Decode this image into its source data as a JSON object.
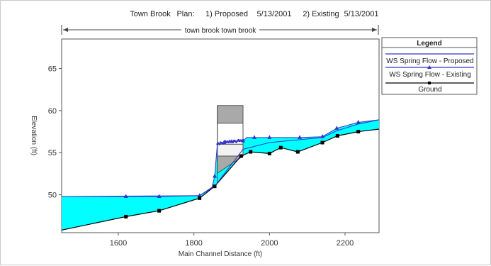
{
  "header": {
    "river": "Town Brook",
    "plan_label": "Plan:",
    "plan1": "1) Proposed",
    "date1": "5/13/2001",
    "plan2": "2) Existing",
    "date2": "5/13/2001"
  },
  "reach_label": "town brook town brook",
  "legend": {
    "title": "Legend",
    "items": [
      {
        "label": "WS  Spring Flow - Proposed",
        "color": "#3333cc",
        "marker": "none"
      },
      {
        "label": "WS  Spring Flow - Existing",
        "color": "#3333cc",
        "marker": "triangle"
      },
      {
        "label": "Ground",
        "color": "#000000",
        "marker": "square"
      }
    ]
  },
  "chart_data": {
    "type": "line",
    "xlabel": "Main Channel Distance (ft)",
    "ylabel": "Elevation (ft)",
    "xlim": [
      1450,
      2290
    ],
    "ylim": [
      45.5,
      68.5
    ],
    "xticks": [
      1600,
      1800,
      2000,
      2200
    ],
    "yticks": [
      50,
      55,
      60,
      65
    ],
    "colors": {
      "water_fill": "#00ffff",
      "ws_line": "#3333cc",
      "ground": "#000000",
      "structure": "#a9a9a9"
    },
    "series": [
      {
        "name": "Ground",
        "x": [
          1450,
          1620,
          1708,
          1815,
          1855,
          1925,
          1950,
          2000,
          2030,
          2075,
          2140,
          2180,
          2235,
          2290
        ],
        "y": [
          45.8,
          47.4,
          48.1,
          49.6,
          51.0,
          54.6,
          55.1,
          54.9,
          55.6,
          55.1,
          56.2,
          57.0,
          57.5,
          57.8
        ],
        "markers_x": [
          1620,
          1708,
          1815,
          1855,
          1925,
          1950,
          2000,
          2030,
          2075,
          2140,
          2180,
          2235
        ]
      },
      {
        "name": "WS  Spring Flow - Existing",
        "x": [
          1450,
          1620,
          1708,
          1815,
          1848,
          1855,
          1862,
          1880,
          1900,
          1930,
          1940,
          1960,
          2000,
          2080,
          2140,
          2178,
          2235,
          2290
        ],
        "y": [
          49.8,
          49.8,
          49.8,
          49.9,
          50.9,
          52.2,
          56.0,
          56.2,
          56.3,
          56.4,
          56.8,
          56.8,
          56.8,
          56.8,
          56.9,
          57.9,
          58.6,
          58.9
        ],
        "markers_x": [
          1620,
          1708,
          1815,
          1855,
          1880,
          1900,
          1930,
          1960,
          2000,
          2080,
          2140,
          2178,
          2235
        ]
      },
      {
        "name": "WS  Spring Flow - Proposed",
        "x": [
          1450,
          1815,
          1855,
          1930,
          2000,
          2140,
          2178,
          2235,
          2290
        ],
        "y": [
          49.8,
          49.9,
          51.0,
          55.4,
          56.2,
          56.8,
          57.6,
          58.4,
          58.9
        ]
      }
    ],
    "structure": {
      "x": [
        1862,
        1930
      ],
      "low_chord_y": 54.6,
      "deck_top_y": 60.6,
      "deck_bottom_y": 58.5,
      "opening_bottom_y": 56.0
    }
  }
}
